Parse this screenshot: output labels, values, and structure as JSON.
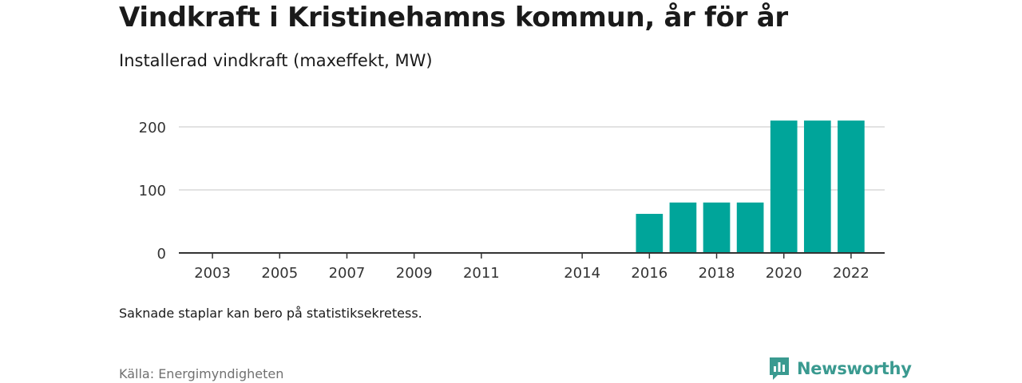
{
  "header": {
    "title": "Vindkraft i Kristinehamns kommun, år för år",
    "subtitle": "Installerad vindkraft (maxeffekt, MW)"
  },
  "chart_data": {
    "type": "bar",
    "x": [
      2003,
      2005,
      2007,
      2009,
      2011,
      2014,
      2016,
      2017,
      2018,
      2019,
      2020,
      2021,
      2022
    ],
    "values": [
      0,
      0,
      0,
      0,
      0,
      0,
      62,
      80,
      80,
      80,
      210,
      210,
      210
    ],
    "x_tick_labels": [
      "2003",
      "2005",
      "2007",
      "2009",
      "2011",
      "2014",
      "2016",
      "2018",
      "2020",
      "2022"
    ],
    "y_ticks": [
      0,
      100,
      200
    ],
    "xlim": [
      2002,
      2023
    ],
    "ylim": [
      0,
      200
    ],
    "grid": true,
    "color": "#00a59a"
  },
  "footer": {
    "note": "Saknade staplar kan bero på statistiksekretess.",
    "source": "Källa: Energimyndigheten",
    "brand": "Newsworthy"
  },
  "colors": {
    "bar": "#00a59a",
    "brand": "#3a9a90",
    "grid": "#d9d9d9",
    "axis": "#333333"
  },
  "icons": {
    "brand_logo": "chart-logo-icon"
  }
}
